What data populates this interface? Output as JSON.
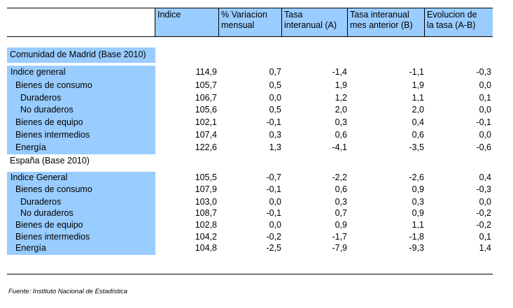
{
  "headers": [
    [
      "Indice"
    ],
    [
      "% Variacion",
      "mensual"
    ],
    [
      "Tasa",
      "interanual (A)"
    ],
    [
      "Tasa interanual",
      "mes anterior (B)"
    ],
    [
      "Evolucion de",
      "la tasa (A-B)"
    ]
  ],
  "sections": [
    {
      "title": "Comunidad de Madrid (Base 2010)",
      "rows": [
        {
          "label": "Indice general",
          "indent": 0,
          "values": [
            "114,9",
            "0,7",
            "-1,4",
            "-1,1",
            "-0,3"
          ]
        },
        {
          "label": "Bienes de consumo",
          "indent": 1,
          "values": [
            "105,7",
            "0,5",
            "1,9",
            "1,9",
            "0,0"
          ]
        },
        {
          "label": "Duraderos",
          "indent": 2,
          "values": [
            "106,7",
            "0,0",
            "1,2",
            "1,1",
            "0,1"
          ]
        },
        {
          "label": "No duraderos",
          "indent": 2,
          "values": [
            "105,6",
            "0,5",
            "2,0",
            "2,0",
            "0,0"
          ]
        },
        {
          "label": "Bienes de equipo",
          "indent": 1,
          "values": [
            "102,1",
            "-0,1",
            "0,3",
            "0,4",
            "-0,1"
          ]
        },
        {
          "label": "Bienes intermedios",
          "indent": 1,
          "values": [
            "107,4",
            "0,3",
            "0,6",
            "0,6",
            "0,0"
          ]
        },
        {
          "label": "Energía",
          "indent": 1,
          "values": [
            "122,6",
            "1,3",
            "-4,1",
            "-3,5",
            "-0,6"
          ]
        }
      ]
    },
    {
      "title": "España (Base 2010)",
      "rows": [
        {
          "label": "Indice General",
          "indent": 0,
          "values": [
            "105,5",
            "-0,7",
            "-2,2",
            "-2,6",
            "0,4"
          ]
        },
        {
          "label": "Bienes de consumo",
          "indent": 1,
          "values": [
            "107,9",
            "-0,1",
            "0,6",
            "0,9",
            "-0,3"
          ]
        },
        {
          "label": "Duraderos",
          "indent": 2,
          "values": [
            "103,0",
            "0,0",
            "0,3",
            "0,3",
            "0,0"
          ]
        },
        {
          "label": "No duraderos",
          "indent": 2,
          "values": [
            "108,7",
            "-0,1",
            "0,7",
            "0,9",
            "-0,2"
          ]
        },
        {
          "label": "Bienes de equipo",
          "indent": 1,
          "values": [
            "102,8",
            "0,0",
            "0,9",
            "1,1",
            "-0,2"
          ]
        },
        {
          "label": "Bienes intermedios",
          "indent": 1,
          "values": [
            "104,2",
            "-0,2",
            "-1,7",
            "-1,8",
            "0,1"
          ]
        },
        {
          "label": "Energía",
          "indent": 1,
          "values": [
            "104,8",
            "-2,5",
            "-7,9",
            "-9,3",
            "1,4"
          ]
        }
      ]
    }
  ],
  "source": "Fuente: Instituto Nacional de Estadística"
}
